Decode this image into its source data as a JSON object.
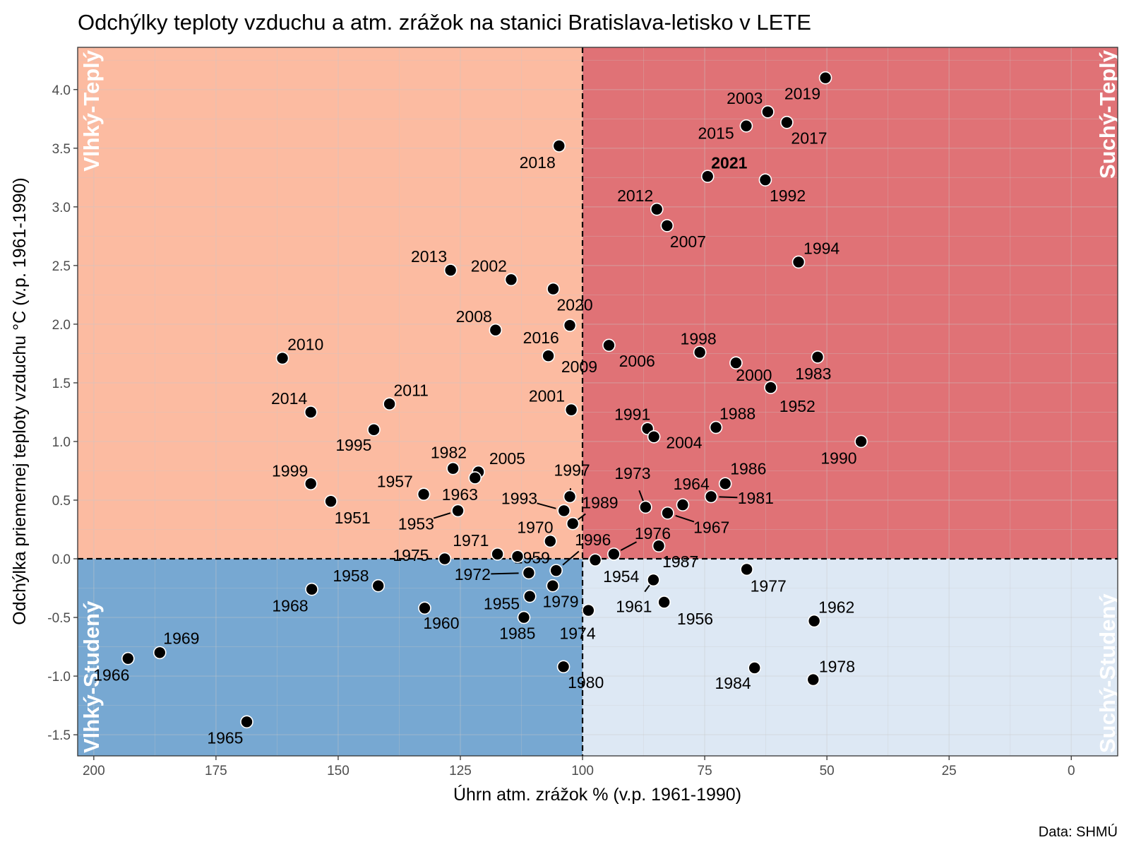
{
  "chart_data": {
    "type": "scatter",
    "title": "Odchýlky teploty vzduchu a atm. zrážok na stanici Bratislava-letisko v LETE",
    "xlabel": "Úhrn atm. zrážok % (v.p. 1961-1990)",
    "ylabel": "Odchýlka priemernej teploty vzduchu °C (v.p. 1961-1990)",
    "caption": "Data: SHMÚ",
    "xlim": [
      203.3,
      -9.5
    ],
    "x_reversed": true,
    "ylim": [
      -1.68,
      4.36
    ],
    "xticks": [
      200,
      175,
      150,
      125,
      100,
      75,
      50,
      25,
      0
    ],
    "yticks": [
      4.0,
      3.5,
      3.0,
      2.5,
      2.0,
      1.5,
      1.0,
      0.5,
      0.0,
      -0.5,
      -1.0,
      -1.5
    ],
    "reference_lines": {
      "x": 100,
      "y": 0,
      "style": "dashed"
    },
    "grid": true,
    "quadrants": [
      {
        "label": "Vlhký-Teplý",
        "color": "#fcbba1"
      },
      {
        "label": "Suchý-Teplý",
        "color": "#e07276"
      },
      {
        "label": "Vlhký-Studený",
        "color": "#77a8d2"
      },
      {
        "label": "Suchý-Studený",
        "color": "#dde8f4"
      }
    ],
    "highlight_year": "2021",
    "points": [
      {
        "year": "2019",
        "x": 50.3,
        "y": 4.1
      },
      {
        "year": "2003",
        "x": 62.1,
        "y": 3.81
      },
      {
        "year": "2017",
        "x": 58.2,
        "y": 3.72
      },
      {
        "year": "2015",
        "x": 66.5,
        "y": 3.69
      },
      {
        "year": "2018",
        "x": 104.8,
        "y": 3.52
      },
      {
        "year": "2021",
        "x": 74.4,
        "y": 3.26
      },
      {
        "year": "1992",
        "x": 62.6,
        "y": 3.23
      },
      {
        "year": "2012",
        "x": 84.8,
        "y": 2.98
      },
      {
        "year": "2007",
        "x": 82.7,
        "y": 2.84
      },
      {
        "year": "1994",
        "x": 55.8,
        "y": 2.53
      },
      {
        "year": "2013",
        "x": 127.0,
        "y": 2.46
      },
      {
        "year": "2002",
        "x": 114.6,
        "y": 2.38
      },
      {
        "year": "2020",
        "x": 106.0,
        "y": 2.3
      },
      {
        "year": "2016",
        "x": 102.6,
        "y": 1.99
      },
      {
        "year": "2009",
        "x": 107.0,
        "y": 1.73
      },
      {
        "year": "2008",
        "x": 117.8,
        "y": 1.95
      },
      {
        "year": "2006",
        "x": 94.6,
        "y": 1.82
      },
      {
        "year": "1998",
        "x": 76.0,
        "y": 1.76
      },
      {
        "year": "2000",
        "x": 68.6,
        "y": 1.67
      },
      {
        "year": "1983",
        "x": 51.9,
        "y": 1.72
      },
      {
        "year": "1952",
        "x": 61.5,
        "y": 1.46
      },
      {
        "year": "2010",
        "x": 161.4,
        "y": 1.71
      },
      {
        "year": "2014",
        "x": 155.6,
        "y": 1.25
      },
      {
        "year": "2011",
        "x": 139.5,
        "y": 1.32
      },
      {
        "year": "1995",
        "x": 142.7,
        "y": 1.1
      },
      {
        "year": "2001",
        "x": 102.3,
        "y": 1.27
      },
      {
        "year": "1991",
        "x": 86.7,
        "y": 1.11
      },
      {
        "year": "2004",
        "x": 85.4,
        "y": 1.04
      },
      {
        "year": "1988",
        "x": 72.7,
        "y": 1.12
      },
      {
        "year": "1990",
        "x": 43.0,
        "y": 1.0
      },
      {
        "year": "1982",
        "x": 126.5,
        "y": 0.77
      },
      {
        "year": "2005",
        "x": 121.3,
        "y": 0.74
      },
      {
        "year": "1963",
        "x": 122.0,
        "y": 0.69
      },
      {
        "year": "1957",
        "x": 132.5,
        "y": 0.55
      },
      {
        "year": "1953",
        "x": 125.5,
        "y": 0.41
      },
      {
        "year": "1999",
        "x": 155.6,
        "y": 0.64
      },
      {
        "year": "1951",
        "x": 151.5,
        "y": 0.49
      },
      {
        "year": "1986",
        "x": 70.8,
        "y": 0.64
      },
      {
        "year": "1964",
        "x": 79.5,
        "y": 0.46
      },
      {
        "year": "1981",
        "x": 73.7,
        "y": 0.53
      },
      {
        "year": "1967",
        "x": 82.6,
        "y": 0.39
      },
      {
        "year": "1973",
        "x": 87.1,
        "y": 0.44
      },
      {
        "year": "1997",
        "x": 102.6,
        "y": 0.53
      },
      {
        "year": "1993",
        "x": 103.8,
        "y": 0.41
      },
      {
        "year": "1989",
        "x": 102.0,
        "y": 0.3
      },
      {
        "year": "1970",
        "x": 106.6,
        "y": 0.15
      },
      {
        "year": "1976",
        "x": 93.6,
        "y": 0.04
      },
      {
        "year": "1987",
        "x": 84.4,
        "y": 0.11
      },
      {
        "year": "1954",
        "x": 97.4,
        "y": -0.01
      },
      {
        "year": "1971",
        "x": 117.4,
        "y": 0.04
      },
      {
        "year": "1959",
        "x": 113.3,
        "y": 0.02
      },
      {
        "year": "1975",
        "x": 128.2,
        "y": 0.0
      },
      {
        "year": "1996",
        "x": 105.4,
        "y": -0.1
      },
      {
        "year": "1972",
        "x": 111.0,
        "y": -0.12
      },
      {
        "year": "1977",
        "x": 66.4,
        "y": -0.09
      },
      {
        "year": "1961",
        "x": 85.5,
        "y": -0.18
      },
      {
        "year": "1958",
        "x": 141.8,
        "y": -0.23
      },
      {
        "year": "1968",
        "x": 155.4,
        "y": -0.26
      },
      {
        "year": "1979",
        "x": 106.1,
        "y": -0.23
      },
      {
        "year": "1955",
        "x": 110.8,
        "y": -0.32
      },
      {
        "year": "1956",
        "x": 83.3,
        "y": -0.37
      },
      {
        "year": "1960",
        "x": 132.3,
        "y": -0.42
      },
      {
        "year": "1974",
        "x": 98.8,
        "y": -0.44
      },
      {
        "year": "1985",
        "x": 112.0,
        "y": -0.5
      },
      {
        "year": "1962",
        "x": 52.6,
        "y": -0.53
      },
      {
        "year": "1969",
        "x": 186.5,
        "y": -0.8
      },
      {
        "year": "1966",
        "x": 193.0,
        "y": -0.85
      },
      {
        "year": "1980",
        "x": 103.9,
        "y": -0.92
      },
      {
        "year": "1984",
        "x": 64.8,
        "y": -0.93
      },
      {
        "year": "1978",
        "x": 52.8,
        "y": -1.03
      },
      {
        "year": "1965",
        "x": 168.7,
        "y": -1.39
      }
    ]
  }
}
